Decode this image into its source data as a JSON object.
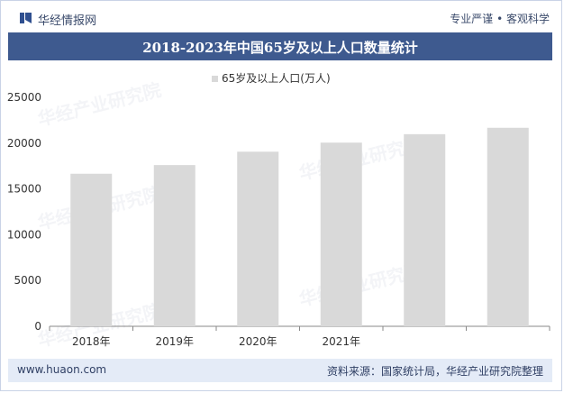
{
  "header": {
    "logo_text": "华经情报网",
    "slogan": "专业严谨 • 客观科学"
  },
  "chart_data": {
    "type": "bar",
    "title": "2018-2023年中国65岁及以上人口数量统计",
    "legend": [
      "65岁及以上人口(万人)"
    ],
    "legend_position": "top-center",
    "categories": [
      "2018年",
      "2019年",
      "2020年",
      "2021年",
      "",
      ""
    ],
    "series": [
      {
        "name": "65岁及以上人口(万人)",
        "values": [
          16658,
          17603,
          19064,
          20056,
          20978,
          21676
        ]
      }
    ],
    "ylim": [
      0,
      25000
    ],
    "yticks": [
      0,
      5000,
      10000,
      15000,
      20000,
      25000
    ],
    "grid": false,
    "bar_color": "#d9d9d9"
  },
  "footer": {
    "website": "www.huaon.com",
    "source": "资料来源：国家统计局，华经产业研究院整理"
  },
  "watermark": "华经产业研究院"
}
